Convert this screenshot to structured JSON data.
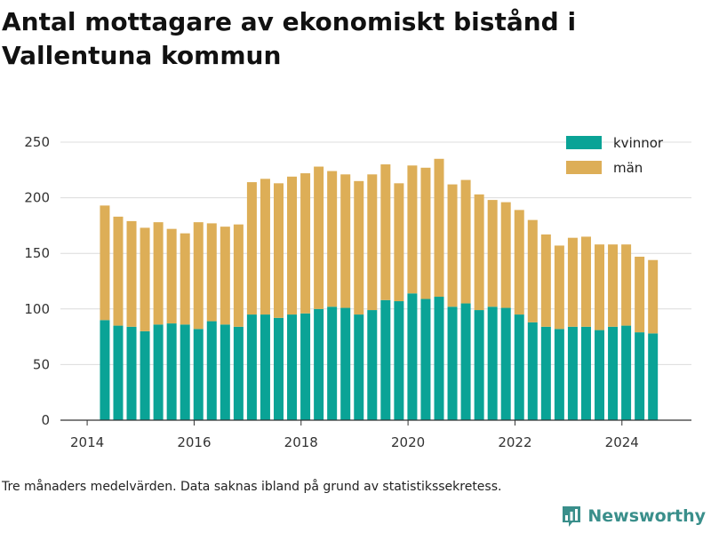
{
  "title": "Antal mottagare av ekonomiskt bistånd i Vallentuna kommun",
  "footnote": "Tre månaders medelvärden. Data saknas ibland på grund av statistikssekretess.",
  "brand": "Newsworthy",
  "colors": {
    "kvinnor": "#0aa396",
    "man": "#ddae57",
    "grid": "#dcdcdc",
    "brand": "#3a8f8b"
  },
  "chart_data": {
    "type": "bar",
    "stacked": true,
    "title": "Antal mottagare av ekonomiskt bistånd i Vallentuna kommun",
    "xlabel": "",
    "ylabel": "",
    "x_ticks": [
      "2014",
      "2016",
      "2018",
      "2020",
      "2022",
      "2024"
    ],
    "y_ticks": [
      "0",
      "50",
      "100",
      "150",
      "200",
      "250"
    ],
    "xlim": [
      2013.5,
      2025.3
    ],
    "ylim": [
      0,
      250
    ],
    "grid": true,
    "legend_position": "top-right",
    "x": [
      2014.33,
      2014.58,
      2014.83,
      2015.08,
      2015.33,
      2015.58,
      2015.83,
      2016.08,
      2016.33,
      2016.58,
      2016.83,
      2017.08,
      2017.33,
      2017.58,
      2017.83,
      2018.08,
      2018.33,
      2018.58,
      2018.83,
      2019.08,
      2019.33,
      2019.58,
      2019.83,
      2020.08,
      2020.33,
      2020.58,
      2020.83,
      2021.08,
      2021.33,
      2021.58,
      2021.83,
      2022.08,
      2022.33,
      2022.58,
      2022.83,
      2023.08,
      2023.33,
      2023.58,
      2023.83,
      2024.08,
      2024.33,
      2024.58
    ],
    "series": [
      {
        "name": "kvinnor",
        "values": [
          90,
          85,
          84,
          80,
          86,
          87,
          86,
          82,
          89,
          86,
          84,
          95,
          95,
          92,
          95,
          96,
          100,
          102,
          101,
          95,
          99,
          108,
          107,
          114,
          109,
          111,
          102,
          105,
          99,
          102,
          101,
          95,
          88,
          84,
          82,
          84,
          84,
          81,
          84,
          85,
          79,
          78
        ]
      },
      {
        "name": "män",
        "values": [
          103,
          98,
          95,
          93,
          92,
          85,
          82,
          96,
          88,
          88,
          92,
          119,
          122,
          121,
          124,
          126,
          128,
          122,
          120,
          120,
          122,
          122,
          106,
          115,
          118,
          124,
          110,
          111,
          104,
          96,
          95,
          94,
          92,
          83,
          75,
          80,
          81,
          77,
          74,
          73,
          68,
          66
        ]
      }
    ]
  }
}
